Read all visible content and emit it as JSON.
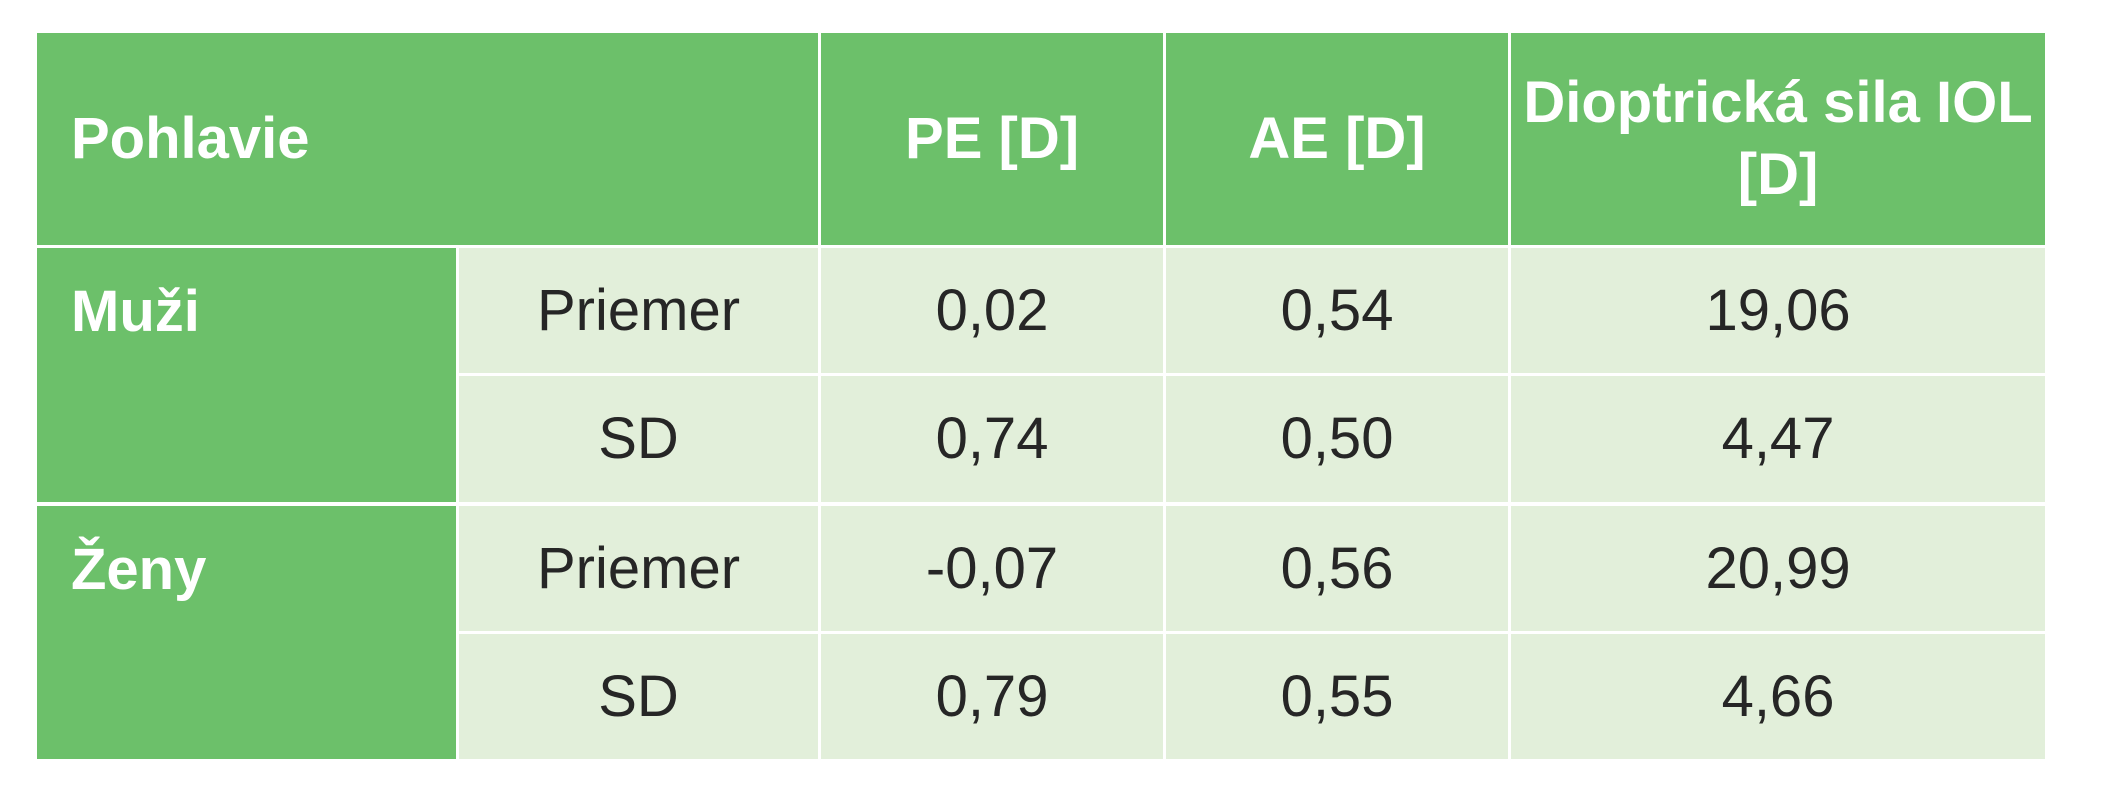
{
  "header": {
    "gender": "Pohlavie",
    "pe": "PE [D]",
    "ae": "AE [D]",
    "iol": "Dioptrická sila IOL [D]"
  },
  "groups": [
    {
      "name": "Muži",
      "rows": [
        {
          "stat": "Priemer",
          "pe": "0,02",
          "ae": "0,54",
          "iol": "19,06"
        },
        {
          "stat": "SD",
          "pe": "0,74",
          "ae": "0,50",
          "iol": "4,47"
        }
      ]
    },
    {
      "name": "Ženy",
      "rows": [
        {
          "stat": "Priemer",
          "pe": "-0,07",
          "ae": "0,56",
          "iol": "20,99"
        },
        {
          "stat": "SD",
          "pe": "0,79",
          "ae": "0,55",
          "iol": "4,66"
        }
      ]
    }
  ],
  "colors": {
    "header_green": "#6cc06a",
    "body_light_green": "#e2efda",
    "text_dark": "#262626"
  }
}
